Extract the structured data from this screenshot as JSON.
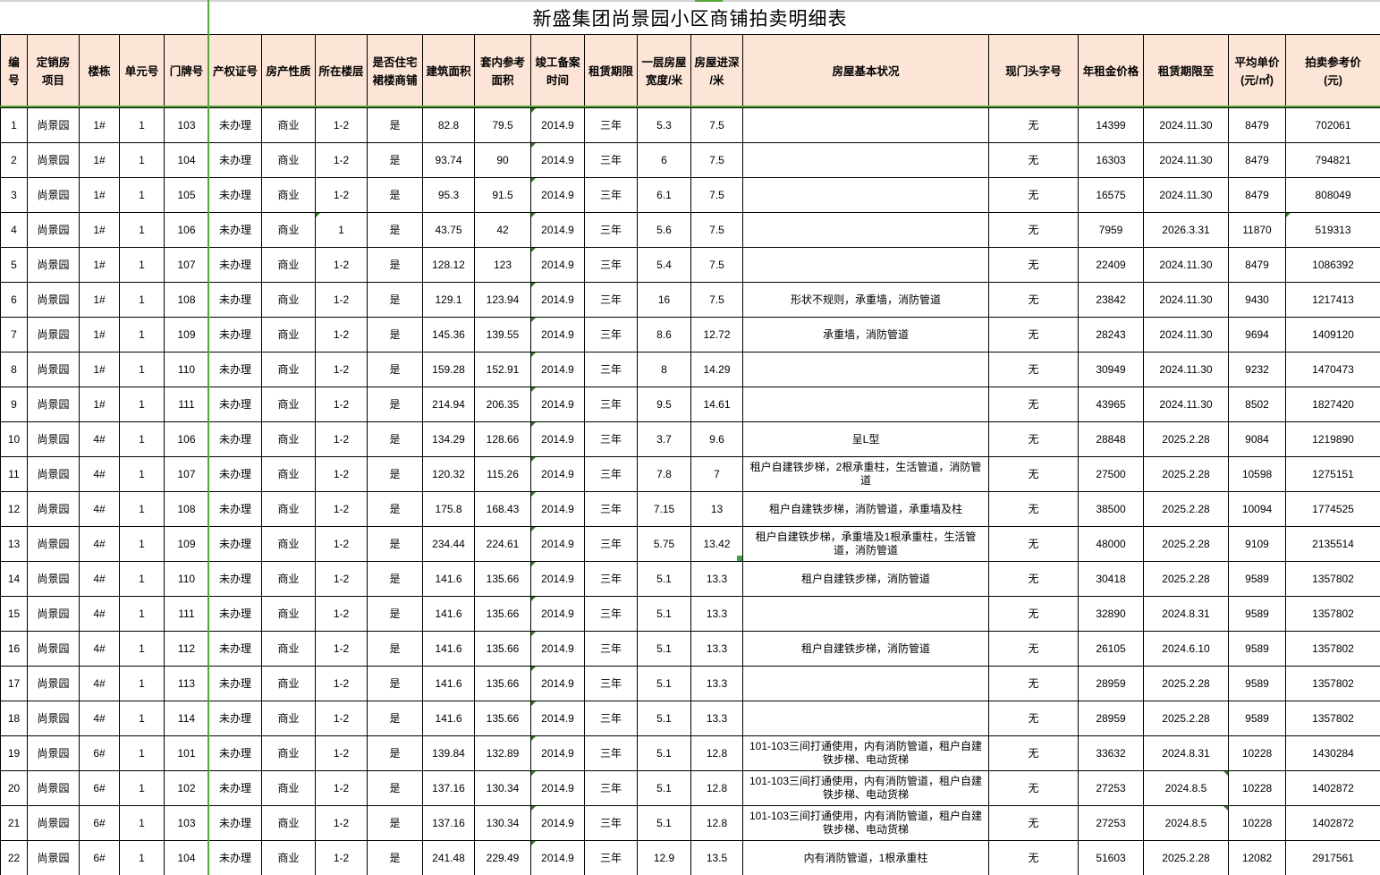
{
  "title": "新盛集团尚景园小区商铺拍卖明细表",
  "columns": [
    {
      "key": "id",
      "label": "编号"
    },
    {
      "key": "project",
      "label": "定销房\n项目"
    },
    {
      "key": "building",
      "label": "楼栋"
    },
    {
      "key": "unit",
      "label": "单元号"
    },
    {
      "key": "door",
      "label": "门牌号"
    },
    {
      "key": "cert",
      "label": "产权证号"
    },
    {
      "key": "nature",
      "label": "房产性质"
    },
    {
      "key": "floor",
      "label": "所在楼层"
    },
    {
      "key": "podium",
      "label": "是否住宅\n裙楼商铺"
    },
    {
      "key": "area",
      "label": "建筑面积"
    },
    {
      "key": "inner_area",
      "label": "套内参考\n面积"
    },
    {
      "key": "completion",
      "label": "竣工备案\n时间"
    },
    {
      "key": "lease_term",
      "label": "租赁期限"
    },
    {
      "key": "width",
      "label": "一层房屋\n宽度/米"
    },
    {
      "key": "depth",
      "label": "房屋进深\n/米"
    },
    {
      "key": "condition",
      "label": "房屋基本状况"
    },
    {
      "key": "sign",
      "label": "现门头字号"
    },
    {
      "key": "rent",
      "label": "年租金价格"
    },
    {
      "key": "lease_until",
      "label": "租赁期限至"
    },
    {
      "key": "avg_price",
      "label": "平均单价\n(元/㎡)"
    },
    {
      "key": "ref_price",
      "label": "拍卖参考价\n(元)"
    }
  ],
  "rows": [
    [
      "1",
      "尚景园",
      "1#",
      "1",
      "103",
      "未办理",
      "商业",
      "1-2",
      "是",
      "82.8",
      "79.5",
      "2014.9",
      "三年",
      "5.3",
      "7.5",
      "",
      "无",
      "14399",
      "2024.11.30",
      "8479",
      "702061"
    ],
    [
      "2",
      "尚景园",
      "1#",
      "1",
      "104",
      "未办理",
      "商业",
      "1-2",
      "是",
      "93.74",
      "90",
      "2014.9",
      "三年",
      "6",
      "7.5",
      "",
      "无",
      "16303",
      "2024.11.30",
      "8479",
      "794821"
    ],
    [
      "3",
      "尚景园",
      "1#",
      "1",
      "105",
      "未办理",
      "商业",
      "1-2",
      "是",
      "95.3",
      "91.5",
      "2014.9",
      "三年",
      "6.1",
      "7.5",
      "",
      "无",
      "16575",
      "2024.11.30",
      "8479",
      "808049"
    ],
    [
      "4",
      "尚景园",
      "1#",
      "1",
      "106",
      "未办理",
      "商业",
      "1",
      "是",
      "43.75",
      "42",
      "2014.9",
      "三年",
      "5.6",
      "7.5",
      "",
      "无",
      "7959",
      "2026.3.31",
      "11870",
      "519313"
    ],
    [
      "5",
      "尚景园",
      "1#",
      "1",
      "107",
      "未办理",
      "商业",
      "1-2",
      "是",
      "128.12",
      "123",
      "2014.9",
      "三年",
      "5.4",
      "7.5",
      "",
      "无",
      "22409",
      "2024.11.30",
      "8479",
      "1086392"
    ],
    [
      "6",
      "尚景园",
      "1#",
      "1",
      "108",
      "未办理",
      "商业",
      "1-2",
      "是",
      "129.1",
      "123.94",
      "2014.9",
      "三年",
      "16",
      "7.5",
      "形状不规则，承重墙，消防管道",
      "无",
      "23842",
      "2024.11.30",
      "9430",
      "1217413"
    ],
    [
      "7",
      "尚景园",
      "1#",
      "1",
      "109",
      "未办理",
      "商业",
      "1-2",
      "是",
      "145.36",
      "139.55",
      "2014.9",
      "三年",
      "8.6",
      "12.72",
      "承重墙，消防管道",
      "无",
      "28243",
      "2024.11.30",
      "9694",
      "1409120"
    ],
    [
      "8",
      "尚景园",
      "1#",
      "1",
      "110",
      "未办理",
      "商业",
      "1-2",
      "是",
      "159.28",
      "152.91",
      "2014.9",
      "三年",
      "8",
      "14.29",
      "",
      "无",
      "30949",
      "2024.11.30",
      "9232",
      "1470473"
    ],
    [
      "9",
      "尚景园",
      "1#",
      "1",
      "111",
      "未办理",
      "商业",
      "1-2",
      "是",
      "214.94",
      "206.35",
      "2014.9",
      "三年",
      "9.5",
      "14.61",
      "",
      "无",
      "43965",
      "2024.11.30",
      "8502",
      "1827420"
    ],
    [
      "10",
      "尚景园",
      "4#",
      "1",
      "106",
      "未办理",
      "商业",
      "1-2",
      "是",
      "134.29",
      "128.66",
      "2014.9",
      "三年",
      "3.7",
      "9.6",
      "呈L型",
      "无",
      "28848",
      "2025.2.28",
      "9084",
      "1219890"
    ],
    [
      "11",
      "尚景园",
      "4#",
      "1",
      "107",
      "未办理",
      "商业",
      "1-2",
      "是",
      "120.32",
      "115.26",
      "2014.9",
      "三年",
      "7.8",
      "7",
      "租户自建铁步梯，2根承重柱，生活管道，消防管道",
      "无",
      "27500",
      "2025.2.28",
      "10598",
      "1275151"
    ],
    [
      "12",
      "尚景园",
      "4#",
      "1",
      "108",
      "未办理",
      "商业",
      "1-2",
      "是",
      "175.8",
      "168.43",
      "2014.9",
      "三年",
      "7.15",
      "13",
      "租户自建铁步梯，消防管道，承重墙及柱",
      "无",
      "38500",
      "2025.2.28",
      "10094",
      "1774525"
    ],
    [
      "13",
      "尚景园",
      "4#",
      "1",
      "109",
      "未办理",
      "商业",
      "1-2",
      "是",
      "234.44",
      "224.61",
      "2014.9",
      "三年",
      "5.75",
      "13.42",
      "租户自建铁步梯，承重墙及1根承重柱，生活管道，消防管道",
      "无",
      "48000",
      "2025.2.28",
      "9109",
      "2135514"
    ],
    [
      "14",
      "尚景园",
      "4#",
      "1",
      "110",
      "未办理",
      "商业",
      "1-2",
      "是",
      "141.6",
      "135.66",
      "2014.9",
      "三年",
      "5.1",
      "13.3",
      "租户自建铁步梯，消防管道",
      "无",
      "30418",
      "2025.2.28",
      "9589",
      "1357802"
    ],
    [
      "15",
      "尚景园",
      "4#",
      "1",
      "111",
      "未办理",
      "商业",
      "1-2",
      "是",
      "141.6",
      "135.66",
      "2014.9",
      "三年",
      "5.1",
      "13.3",
      "",
      "无",
      "32890",
      "2024.8.31",
      "9589",
      "1357802"
    ],
    [
      "16",
      "尚景园",
      "4#",
      "1",
      "112",
      "未办理",
      "商业",
      "1-2",
      "是",
      "141.6",
      "135.66",
      "2014.9",
      "三年",
      "5.1",
      "13.3",
      "租户自建铁步梯，消防管道",
      "无",
      "26105",
      "2024.6.10",
      "9589",
      "1357802"
    ],
    [
      "17",
      "尚景园",
      "4#",
      "1",
      "113",
      "未办理",
      "商业",
      "1-2",
      "是",
      "141.6",
      "135.66",
      "2014.9",
      "三年",
      "5.1",
      "13.3",
      "",
      "无",
      "28959",
      "2025.2.28",
      "9589",
      "1357802"
    ],
    [
      "18",
      "尚景园",
      "4#",
      "1",
      "114",
      "未办理",
      "商业",
      "1-2",
      "是",
      "141.6",
      "135.66",
      "2014.9",
      "三年",
      "5.1",
      "13.3",
      "",
      "无",
      "28959",
      "2025.2.28",
      "9589",
      "1357802"
    ],
    [
      "19",
      "尚景园",
      "6#",
      "1",
      "101",
      "未办理",
      "商业",
      "1-2",
      "是",
      "139.84",
      "132.89",
      "2014.9",
      "三年",
      "5.1",
      "12.8",
      "101-103三间打通使用，内有消防管道，租户自建铁步梯、电动货梯",
      "无",
      "33632",
      "2024.8.31",
      "10228",
      "1430284"
    ],
    [
      "20",
      "尚景园",
      "6#",
      "1",
      "102",
      "未办理",
      "商业",
      "1-2",
      "是",
      "137.16",
      "130.34",
      "2014.9",
      "三年",
      "5.1",
      "12.8",
      "101-103三间打通使用，内有消防管道，租户自建铁步梯、电动货梯",
      "无",
      "27253",
      "2024.8.5",
      "10228",
      "1402872"
    ],
    [
      "21",
      "尚景园",
      "6#",
      "1",
      "103",
      "未办理",
      "商业",
      "1-2",
      "是",
      "137.16",
      "130.34",
      "2014.9",
      "三年",
      "5.1",
      "12.8",
      "101-103三间打通使用，内有消防管道，租户自建铁步梯、电动货梯",
      "无",
      "27253",
      "2024.8.5",
      "10228",
      "1402872"
    ],
    [
      "22",
      "尚景园",
      "6#",
      "1",
      "104",
      "未办理",
      "商业",
      "1-2",
      "是",
      "241.48",
      "229.49",
      "2014.9",
      "三年",
      "12.9",
      "13.5",
      "内有消防管道，1根承重柱",
      "无",
      "51603",
      "2025.2.28",
      "12082",
      "2917561"
    ]
  ],
  "selection": {
    "row_index": 12,
    "column_key": "depth",
    "value": "13.42"
  },
  "indicators": {
    "completion_column_all_rows": "tl",
    "extras": [
      {
        "row_index": 3,
        "column_key": "floor",
        "corner": "tl"
      },
      {
        "row_index": 3,
        "column_key": "ref_price",
        "corner": "tl"
      },
      {
        "row_index": 19,
        "column_key": "lease_until",
        "corner": "tr"
      },
      {
        "row_index": 20,
        "column_key": "lease_until",
        "corner": "tr"
      }
    ]
  },
  "colors": {
    "header_bg": "#fce4d6",
    "grid_line": "#000000",
    "selection_green": "#43a047",
    "pagebreak_green": "#57a639",
    "indicator_green": "#2e7d1f",
    "top_strip_gray": "#d2d2d2"
  }
}
